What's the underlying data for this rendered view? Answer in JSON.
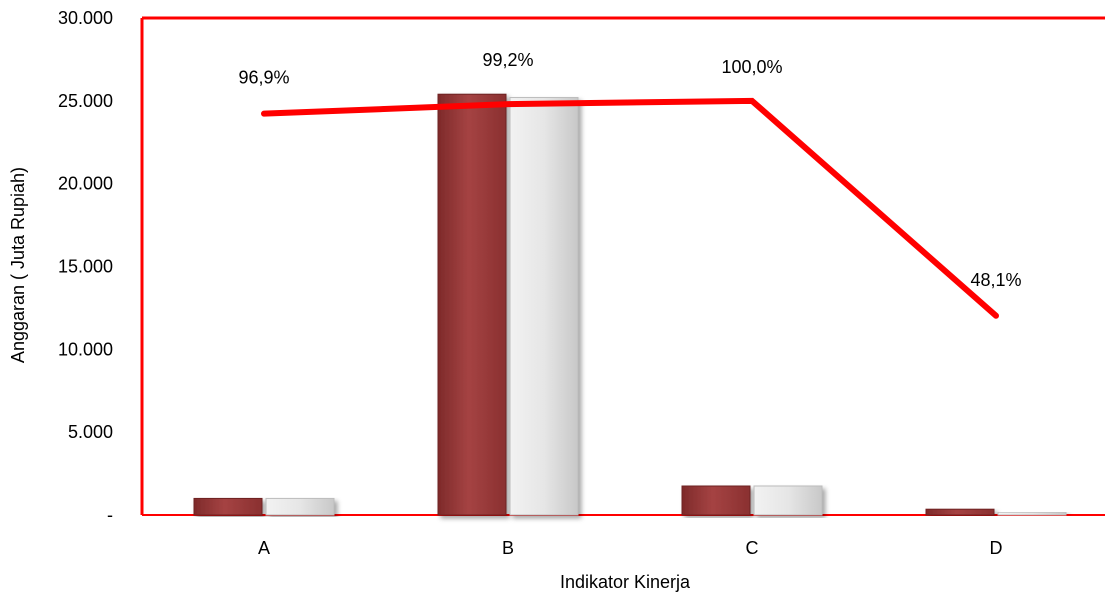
{
  "chart_data": {
    "type": "bar",
    "title": "",
    "xlabel": "Indikator Kinerja",
    "ylabel": "Anggaran ( Juta Rupiah)",
    "categories": [
      "A",
      "B",
      "C",
      "D"
    ],
    "ylim": [
      0,
      30000
    ],
    "yticks": [
      {
        "value": 0,
        "label": "-"
      },
      {
        "value": 5000,
        "label": "5.000"
      },
      {
        "value": 10000,
        "label": "10.000"
      },
      {
        "value": 15000,
        "label": "15.000"
      },
      {
        "value": 20000,
        "label": "20.000"
      },
      {
        "value": 25000,
        "label": "25.000"
      },
      {
        "value": 30000,
        "label": "30.000"
      }
    ],
    "series": [
      {
        "type": "bar",
        "color": "#9b3a3a",
        "values": [
          1000,
          25400,
          1750,
          350
        ]
      },
      {
        "type": "bar",
        "color": "#e2e2e2",
        "values": [
          1000,
          25200,
          1750,
          170
        ]
      },
      {
        "type": "line",
        "color": "#ff0000",
        "values": [
          96.9,
          99.2,
          100.0,
          48.1
        ],
        "labels": [
          "96,9%",
          "99,2%",
          "100,0%",
          "48,1%"
        ],
        "secondary_ylim": [
          0,
          120
        ]
      }
    ],
    "grid": false,
    "legend": "none",
    "plot_border_color": "#ff0000"
  }
}
